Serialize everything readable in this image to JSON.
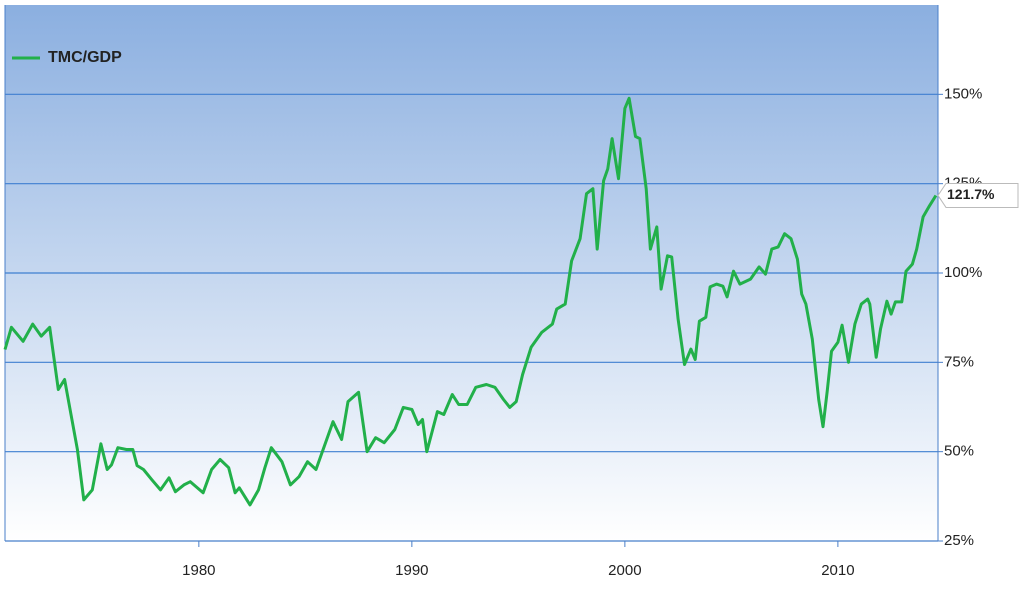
{
  "chart_data": {
    "type": "line",
    "x": [
      1970.9,
      1971.2,
      1971.75,
      1972.2,
      1972.6,
      1973.0,
      1973.4,
      1973.7,
      1974.0,
      1974.3,
      1974.6,
      1975.0,
      1975.4,
      1975.7,
      1975.9,
      1976.2,
      1976.6,
      1976.9,
      1977.1,
      1977.4,
      1977.8,
      1978.2,
      1978.6,
      1978.9,
      1979.3,
      1979.6,
      1980.2,
      1980.6,
      1981.0,
      1981.4,
      1981.7,
      1981.9,
      1982.4,
      1982.8,
      1983.1,
      1983.4,
      1983.9,
      1984.3,
      1984.7,
      1985.1,
      1985.5,
      1986.0,
      1986.3,
      1986.7,
      1987.0,
      1987.5,
      1987.9,
      1988.3,
      1988.7,
      1989.2,
      1989.6,
      1990.0,
      1990.3,
      1990.5,
      1990.7,
      1991.2,
      1991.5,
      1991.9,
      1992.2,
      1992.6,
      1993.0,
      1993.5,
      1993.9,
      1994.3,
      1994.6,
      1994.9,
      1995.2,
      1995.6,
      1996.1,
      1996.6,
      1996.8,
      1997.2,
      1997.5,
      1997.9,
      1998.2,
      1998.5,
      1998.7,
      1999.0,
      1999.2,
      1999.4,
      1999.7,
      2000.0,
      2000.2,
      2000.5,
      2000.7,
      2001.0,
      2001.2,
      2001.5,
      2001.7,
      2002.0,
      2002.2,
      2002.5,
      2002.8,
      2003.1,
      2003.3,
      2003.5,
      2003.8,
      2004.0,
      2004.3,
      2004.6,
      2004.8,
      2005.1,
      2005.4,
      2005.9,
      2006.3,
      2006.6,
      2006.9,
      2007.2,
      2007.5,
      2007.8,
      2008.1,
      2008.3,
      2008.5,
      2008.8,
      2009.1,
      2009.3,
      2009.5,
      2009.7,
      2010.0,
      2010.2,
      2010.5,
      2010.8,
      2011.1,
      2011.4,
      2011.5,
      2011.8,
      2012.0,
      2012.3,
      2012.5,
      2012.7,
      2013.0,
      2013.2,
      2013.5,
      2013.7,
      2014.0,
      2014.3,
      2014.6
    ],
    "series": [
      {
        "name": "TMC/GDP",
        "color": "#22b04a",
        "values": [
          78.6,
          84.8,
          80.9,
          85.7,
          82.3,
          84.8,
          67.4,
          70.2,
          60.4,
          50.6,
          36.5,
          39.3,
          52.2,
          45.0,
          46.3,
          51.1,
          50.6,
          50.6,
          46.1,
          45.0,
          42.1,
          39.3,
          42.7,
          38.8,
          40.7,
          41.6,
          38.5,
          45.0,
          47.8,
          45.5,
          38.5,
          39.9,
          35.1,
          39.3,
          45.5,
          51.1,
          47.2,
          40.7,
          43.0,
          47.2,
          45.0,
          53.4,
          58.4,
          53.4,
          64.0,
          66.6,
          50.0,
          53.9,
          52.5,
          56.2,
          62.4,
          61.8,
          57.6,
          59.0,
          50.0,
          61.2,
          60.4,
          66.0,
          63.2,
          63.2,
          68.0,
          68.8,
          68.0,
          64.6,
          62.4,
          64.0,
          71.6,
          79.2,
          83.4,
          85.7,
          89.9,
          91.3,
          103.4,
          109.6,
          122.2,
          123.6,
          106.7,
          125.8,
          129.2,
          137.6,
          126.4,
          146.1,
          148.9,
          138.2,
          137.6,
          123.6,
          106.7,
          112.9,
          95.5,
          104.8,
          104.5,
          87.1,
          74.4,
          78.7,
          75.8,
          86.5,
          87.6,
          96.1,
          96.9,
          96.3,
          93.3,
          100.5,
          96.9,
          98.3,
          101.7,
          99.7,
          106.7,
          107.3,
          111.0,
          109.6,
          103.9,
          94.1,
          91.3,
          81.5,
          64.6,
          57.0,
          66.9,
          78.1,
          80.6,
          85.4,
          75.0,
          85.7,
          91.3,
          92.7,
          91.3,
          76.4,
          84.3,
          92.1,
          88.5,
          91.9,
          91.9,
          100.5,
          102.5,
          106.7,
          115.7,
          118.8,
          121.7
        ]
      }
    ],
    "end_label": {
      "value": 121.7,
      "label": "121.7%"
    },
    "xlim": [
      1970.9,
      2014.7
    ],
    "xticks": [
      1980,
      1990,
      2000,
      2010
    ],
    "ylim": [
      25,
      175
    ],
    "yticks": [
      {
        "value": 25,
        "label": "25%"
      },
      {
        "value": 50,
        "label": "50%"
      },
      {
        "value": 75,
        "label": "75%"
      },
      {
        "value": 100,
        "label": "100%"
      },
      {
        "value": 125,
        "label": "125%"
      },
      {
        "value": 150,
        "label": "150%"
      }
    ],
    "grid": true
  }
}
